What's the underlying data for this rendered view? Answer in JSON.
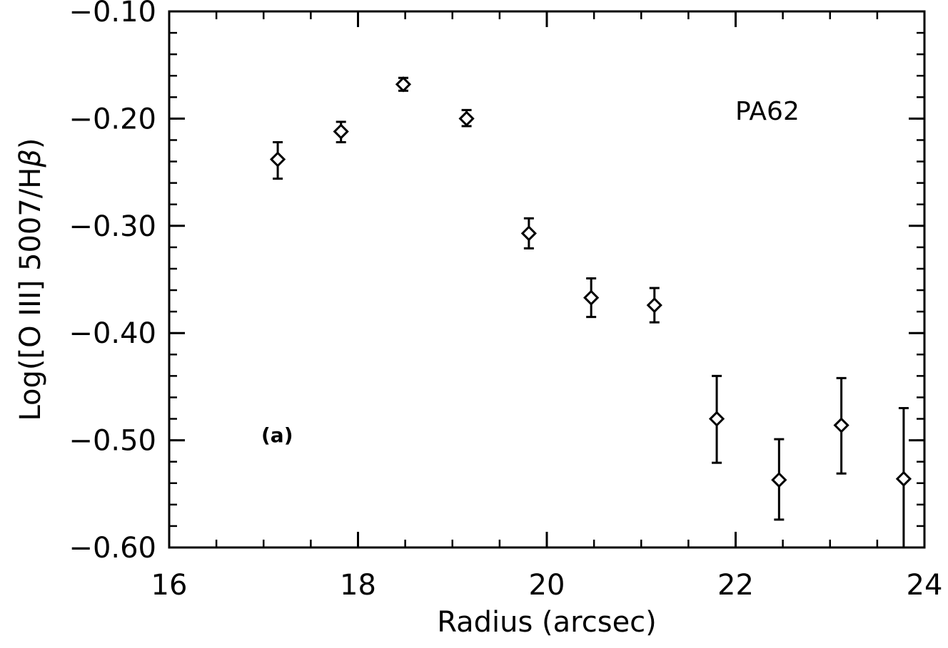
{
  "chart_data": {
    "type": "scatter",
    "title": "",
    "xlabel": "Radius (arcsec)",
    "ylabel_parts": [
      "Log([O III] 5007/H",
      "β",
      ")"
    ],
    "xlim": [
      16,
      24
    ],
    "ylim": [
      -0.6,
      -0.1
    ],
    "xticks": [
      16,
      18,
      20,
      22,
      24
    ],
    "xtick_labels": [
      "16",
      "18",
      "20",
      "22",
      "24"
    ],
    "yticks": [
      -0.6,
      -0.5,
      -0.4,
      -0.3,
      -0.2,
      -0.1
    ],
    "ytick_labels": [
      "−0.60",
      "−0.50",
      "−0.40",
      "−0.30",
      "−0.20",
      "−0.10"
    ],
    "grid": false,
    "marker": "diamond",
    "annotations": {
      "label": "PA62",
      "panel": "(a)"
    },
    "points": [
      {
        "x": 17.15,
        "y": -0.238,
        "err_low": 0.018,
        "err_high": 0.016
      },
      {
        "x": 17.82,
        "y": -0.212,
        "err_low": 0.01,
        "err_high": 0.009
      },
      {
        "x": 18.48,
        "y": -0.168,
        "err_low": 0.006,
        "err_high": 0.006
      },
      {
        "x": 19.15,
        "y": -0.2,
        "err_low": 0.007,
        "err_high": 0.008
      },
      {
        "x": 19.81,
        "y": -0.307,
        "err_low": 0.014,
        "err_high": 0.014
      },
      {
        "x": 20.47,
        "y": -0.367,
        "err_low": 0.018,
        "err_high": 0.018
      },
      {
        "x": 21.14,
        "y": -0.374,
        "err_low": 0.016,
        "err_high": 0.016
      },
      {
        "x": 21.8,
        "y": -0.48,
        "err_low": 0.041,
        "err_high": 0.04
      },
      {
        "x": 22.46,
        "y": -0.537,
        "err_low": 0.037,
        "err_high": 0.038
      },
      {
        "x": 23.12,
        "y": -0.486,
        "err_low": 0.045,
        "err_high": 0.044
      },
      {
        "x": 23.78,
        "y": -0.536,
        "err_low": 0.064,
        "err_high": 0.066
      }
    ]
  }
}
